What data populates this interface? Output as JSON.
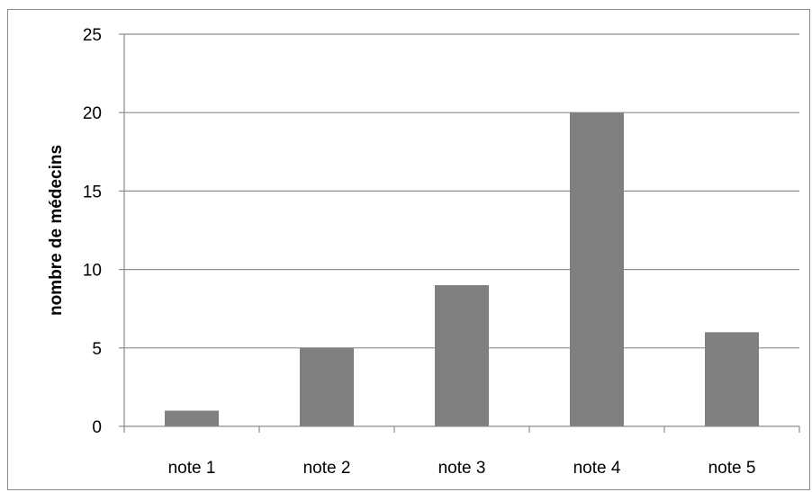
{
  "chart_data": {
    "type": "bar",
    "categories": [
      "note 1",
      "note 2",
      "note 3",
      "note 4",
      "note 5"
    ],
    "values": [
      1,
      5,
      9,
      20,
      6
    ],
    "title": "",
    "xlabel": "",
    "ylabel": "nombre de médecins",
    "ylim": [
      0,
      25
    ],
    "yticks": [
      0,
      5,
      10,
      15,
      20,
      25
    ],
    "grid": true,
    "legend": "none",
    "colors": {
      "bar": "#808080",
      "grid": "#8c8c8c",
      "axis": "#8c8c8c"
    }
  }
}
